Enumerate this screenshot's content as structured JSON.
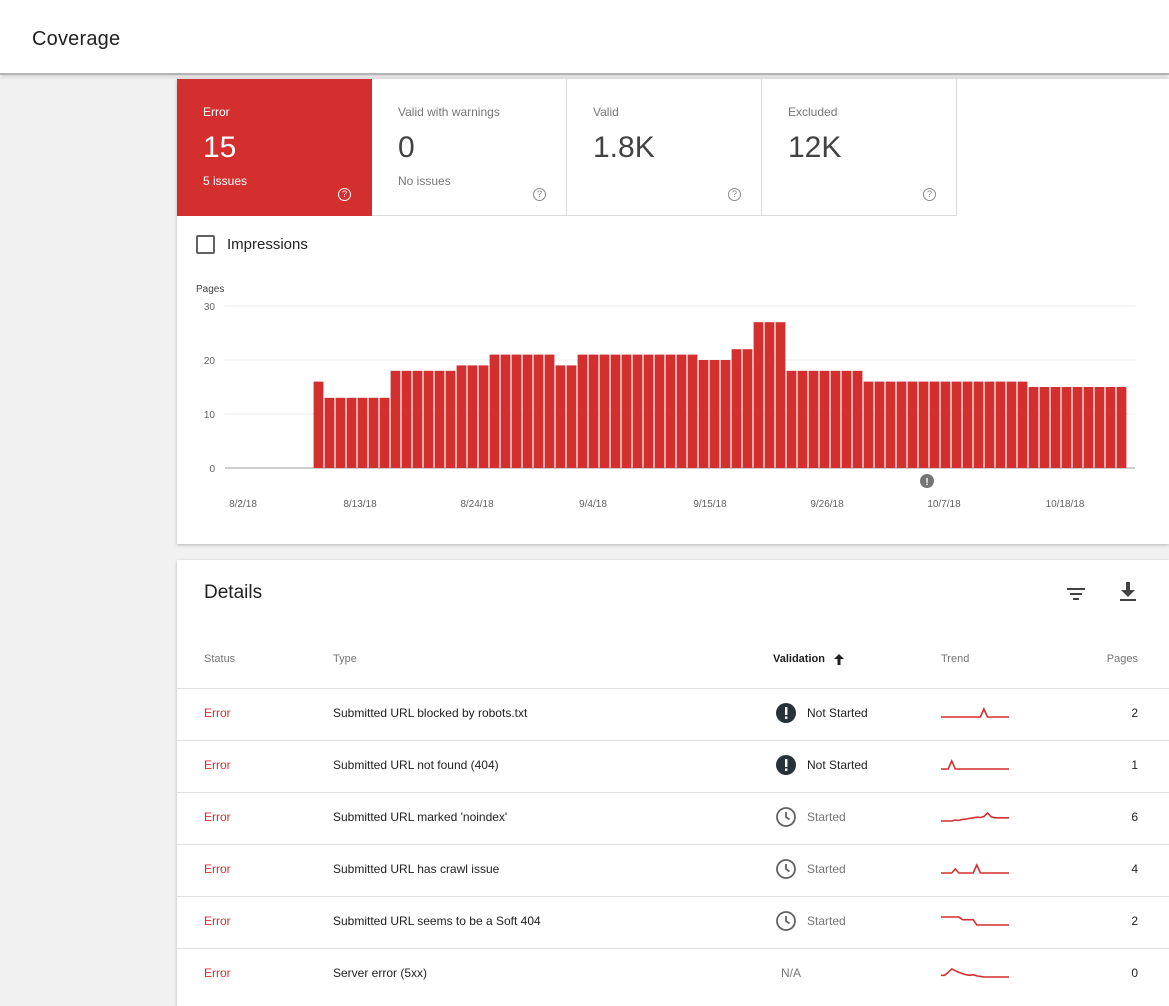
{
  "header": {
    "title": "Coverage"
  },
  "tiles": [
    {
      "label": "Error",
      "value": "15",
      "sub": "5 issues",
      "active": true
    },
    {
      "label": "Valid with warnings",
      "value": "0",
      "sub": "No issues",
      "active": false
    },
    {
      "label": "Valid",
      "value": "1.8K",
      "sub": "",
      "active": false
    },
    {
      "label": "Excluded",
      "value": "12K",
      "sub": "",
      "active": false
    }
  ],
  "impressions": {
    "label": "Impressions",
    "checked": false
  },
  "chart_data": {
    "type": "bar",
    "ylabel": "Pages",
    "ylim": [
      0,
      30
    ],
    "yticks": [
      0,
      10,
      20,
      30
    ],
    "xtick_labels": [
      "8/2/18",
      "8/13/18",
      "8/24/18",
      "9/4/18",
      "9/15/18",
      "9/26/18",
      "10/7/18",
      "10/18/18"
    ],
    "annotation_marker": "10/5/18",
    "bar_color": "#d32f2f",
    "start_date": "8/2/18",
    "values": [
      null,
      null,
      null,
      null,
      null,
      null,
      null,
      null,
      16,
      13,
      13,
      13,
      13,
      13,
      13,
      18,
      18,
      18,
      18,
      18,
      18,
      19,
      19,
      19,
      21,
      21,
      21,
      21,
      21,
      21,
      19,
      19,
      21,
      21,
      21,
      21,
      21,
      21,
      21,
      21,
      21,
      21,
      21,
      20,
      20,
      20,
      22,
      22,
      27,
      27,
      27,
      18,
      18,
      18,
      18,
      18,
      18,
      18,
      16,
      16,
      16,
      16,
      16,
      16,
      16,
      16,
      16,
      16,
      16,
      16,
      16,
      16,
      16,
      15,
      15,
      15,
      15,
      15,
      15,
      15,
      15,
      15
    ]
  },
  "details": {
    "title": "Details",
    "columns": {
      "status": "Status",
      "type": "Type",
      "validation": "Validation",
      "trend": "Trend",
      "pages": "Pages"
    },
    "rows": [
      {
        "status": "Error",
        "type": "Submitted URL blocked by robots.txt",
        "validation": "Not Started",
        "validation_state": "not-started",
        "trend": [
          2,
          2,
          2,
          2,
          2,
          2,
          2,
          2,
          2,
          2,
          2,
          2,
          2.2,
          2,
          2,
          2,
          2,
          2,
          2,
          2
        ],
        "pages": "2"
      },
      {
        "status": "Error",
        "type": "Submitted URL not found (404)",
        "validation": "Not Started",
        "validation_state": "not-started",
        "trend": [
          1,
          1,
          1,
          1.1,
          1,
          1,
          1,
          1,
          1,
          1,
          1,
          1,
          1,
          1,
          1,
          1,
          1,
          1,
          1,
          1
        ],
        "pages": "1"
      },
      {
        "status": "Error",
        "type": "Submitted URL marked 'noindex'",
        "validation": "Started",
        "validation_state": "started",
        "trend": [
          5,
          5,
          5,
          5,
          5.3,
          5.2,
          5.5,
          5.6,
          5.8,
          6,
          6.2,
          6.1,
          6.4,
          7.5,
          6.3,
          6,
          6,
          6,
          6,
          6
        ],
        "pages": "6"
      },
      {
        "status": "Error",
        "type": "Submitted URL has crawl issue",
        "validation": "Started",
        "validation_state": "started",
        "trend": [
          4,
          4,
          4,
          4,
          4.1,
          4,
          4,
          4,
          4,
          4,
          4.2,
          4,
          4,
          4,
          4,
          4,
          4,
          4,
          4,
          4
        ],
        "pages": "4"
      },
      {
        "status": "Error",
        "type": "Submitted URL seems to be a Soft 404",
        "validation": "Started",
        "validation_state": "started",
        "trend": [
          2.3,
          2.3,
          2.3,
          2.3,
          2.3,
          2.3,
          2.2,
          2.2,
          2.2,
          2.2,
          2,
          2,
          2,
          2,
          2,
          2,
          2,
          2,
          2,
          2
        ],
        "pages": "2"
      },
      {
        "status": "Error",
        "type": "Server error (5xx)",
        "validation": "N/A",
        "validation_state": "na",
        "trend": [
          0.3,
          0.3,
          0.8,
          1.4,
          1.1,
          0.8,
          0.6,
          0.4,
          0.3,
          0.4,
          0.2,
          0.1,
          0,
          0,
          0,
          0,
          0,
          0,
          0,
          0
        ],
        "pages": "0"
      }
    ]
  }
}
